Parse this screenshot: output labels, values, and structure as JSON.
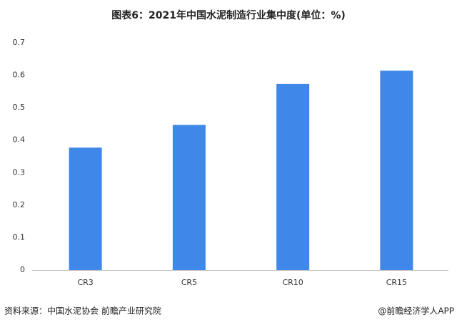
{
  "chart_data": {
    "type": "bar",
    "title": "图表6：2021年中国水泥制造行业集中度(单位：%)",
    "categories": [
      "CR3",
      "CR5",
      "CR10",
      "CR15"
    ],
    "values": [
      0.377,
      0.447,
      0.573,
      0.614
    ],
    "color": "#3f87e8",
    "ylim": [
      0,
      0.7
    ],
    "yticks": [
      0,
      0.1,
      0.2,
      0.3,
      0.4,
      0.5,
      0.6,
      0.7
    ],
    "grid": false,
    "source": "资料来源：中国水泥协会 前瞻产业研究院",
    "credit": "@前瞻经济学人APP"
  }
}
